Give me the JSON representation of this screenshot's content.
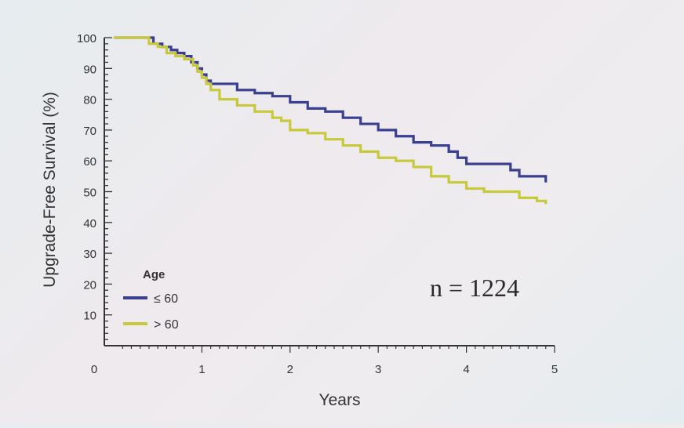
{
  "chart_data": {
    "type": "line",
    "title": "",
    "xlabel": "Years",
    "ylabel": "Upgrade-Free Survival (%)",
    "xlim": [
      0,
      5
    ],
    "ylim": [
      0,
      100
    ],
    "x_ticks": [
      "0",
      "1",
      "2",
      "3",
      "4",
      "5"
    ],
    "y_ticks": [
      "10",
      "20",
      "30",
      "40",
      "50",
      "60",
      "70",
      "80",
      "90",
      "100"
    ],
    "y_tick_values": [
      10,
      20,
      30,
      40,
      50,
      60,
      70,
      80,
      90,
      100
    ],
    "legend": {
      "title": "Age",
      "placement": "bottom-left",
      "entries": [
        "≤ 60",
        "> 60"
      ]
    },
    "annotation": "n = 1224",
    "grid": false,
    "series": [
      {
        "name": "≤ 60",
        "color": "#3a3f8f",
        "step": true,
        "x": [
          0,
          0.35,
          0.45,
          0.55,
          0.65,
          0.72,
          0.8,
          0.88,
          0.95,
          1.0,
          1.05,
          1.1,
          1.2,
          1.4,
          1.6,
          1.8,
          2.0,
          2.2,
          2.4,
          2.6,
          2.8,
          3.0,
          3.2,
          3.4,
          3.6,
          3.8,
          3.9,
          4.0,
          4.2,
          4.4,
          4.5,
          4.6,
          4.8,
          4.9
        ],
        "y": [
          100,
          100,
          98,
          97,
          96,
          95,
          94,
          92,
          90,
          88,
          86,
          85,
          85,
          83,
          82,
          81,
          79,
          77,
          76,
          74,
          72,
          70,
          68,
          66,
          65,
          63,
          61,
          59,
          59,
          59,
          57,
          55,
          55,
          53
        ]
      },
      {
        "name": "> 60",
        "color": "#c7c83a",
        "step": true,
        "x": [
          0,
          0.3,
          0.4,
          0.5,
          0.6,
          0.7,
          0.8,
          0.9,
          0.95,
          1.0,
          1.05,
          1.1,
          1.2,
          1.4,
          1.6,
          1.8,
          1.9,
          2.0,
          2.2,
          2.4,
          2.6,
          2.8,
          3.0,
          3.2,
          3.4,
          3.6,
          3.8,
          4.0,
          4.2,
          4.4,
          4.6,
          4.8,
          4.9
        ],
        "y": [
          100,
          100,
          98,
          97,
          95,
          94,
          93,
          91,
          89,
          87,
          85,
          83,
          80,
          78,
          76,
          74,
          73,
          70,
          69,
          67,
          65,
          63,
          61,
          60,
          58,
          55,
          53,
          51,
          50,
          50,
          48,
          47,
          46
        ]
      }
    ]
  }
}
